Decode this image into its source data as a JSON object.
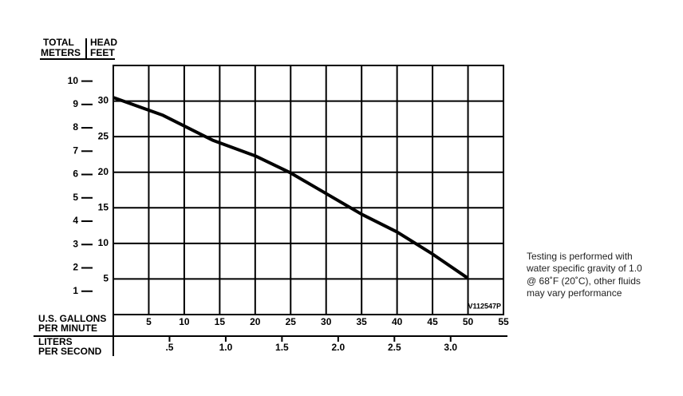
{
  "chart_data": {
    "type": "line",
    "y_label_left": [
      "TOTAL",
      "METERS"
    ],
    "y_label_right": [
      "HEAD",
      "FEET"
    ],
    "x_label": [
      "U.S. GALLONS",
      "PER MINUTE"
    ],
    "x2_label": [
      "LITERS",
      "PER SECOND"
    ],
    "code": "V112547P",
    "note": [
      "Testing is performed with",
      "water specific gravity of 1.0",
      "@ 68˚F (20˚C), other fluids",
      "may vary performance"
    ],
    "x": [
      0,
      7,
      14,
      20,
      25,
      30,
      35,
      40,
      45,
      50
    ],
    "series": [
      {
        "name": "Head",
        "color": "#000000",
        "values": [
          30.5,
          28,
          24.5,
          22.3,
          19.9,
          17,
          14.1,
          11.6,
          8.5,
          5.1
        ]
      }
    ],
    "xlim": [
      0,
      55
    ],
    "xticks": [
      5,
      10,
      15,
      20,
      25,
      30,
      35,
      40,
      45,
      50,
      55
    ],
    "ylim": [
      0,
      35
    ],
    "yticks": [
      5,
      10,
      15,
      20,
      25,
      30
    ],
    "y2lim": [
      0,
      10.67
    ],
    "y2ticks": [
      1,
      2,
      3,
      4,
      5,
      6,
      7,
      8,
      9,
      10
    ],
    "x2lim": [
      0,
      3.47
    ],
    "x2ticks": [
      {
        "value": 0.5,
        "label": ".5"
      },
      {
        "value": 1,
        "label": "1.0"
      },
      {
        "value": 1.5,
        "label": "1.5"
      },
      {
        "value": 2,
        "label": "2.0"
      },
      {
        "value": 2.5,
        "label": "2.5"
      },
      {
        "value": 3,
        "label": "3.0"
      }
    ],
    "grid": true
  }
}
